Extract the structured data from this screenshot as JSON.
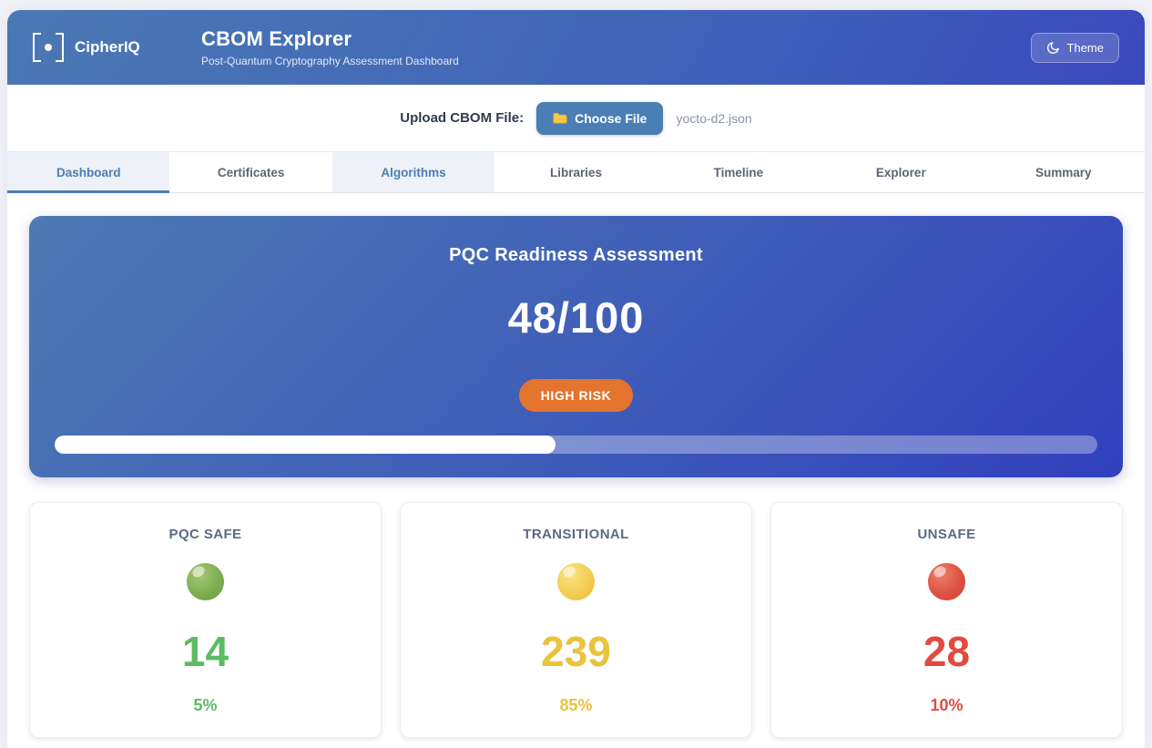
{
  "header": {
    "brand": "CipherIQ",
    "title": "CBOM Explorer",
    "subtitle": "Post-Quantum Cryptography Assessment Dashboard",
    "theme_button_label": "Theme"
  },
  "upload": {
    "label": "Upload CBOM File:",
    "button_label": "Choose File",
    "filename": "yocto-d2.json"
  },
  "tabs": [
    {
      "label": "Dashboard",
      "active": true
    },
    {
      "label": "Certificates",
      "active": false
    },
    {
      "label": "Algorithms",
      "active": false
    },
    {
      "label": "Libraries",
      "active": false
    },
    {
      "label": "Timeline",
      "active": false
    },
    {
      "label": "Explorer",
      "active": false
    },
    {
      "label": "Summary",
      "active": false
    }
  ],
  "assessment": {
    "title": "PQC Readiness Assessment",
    "score": "48/100",
    "risk_label": "HIGH RISK",
    "progress_percent": 48
  },
  "stats": [
    {
      "label": "PQC SAFE",
      "count": "14",
      "percent": "5%",
      "color": "#5dbb63"
    },
    {
      "label": "TRANSITIONAL",
      "count": "239",
      "percent": "85%",
      "color": "#e9c33c"
    },
    {
      "label": "UNSAFE",
      "count": "28",
      "percent": "10%",
      "color": "#e04b40"
    }
  ],
  "colors": {
    "header_gradient_start": "#4b79b4",
    "header_gradient_end": "#3a49bd",
    "hero_gradient_start": "#4d7ab3",
    "hero_gradient_end": "#3240bd",
    "accent_blue": "#4a7eb5",
    "risk_badge_orange": "#e4742e",
    "safe_green": "#5dbb63",
    "transitional_yellow": "#e9c33c",
    "unsafe_red": "#e04b40"
  }
}
